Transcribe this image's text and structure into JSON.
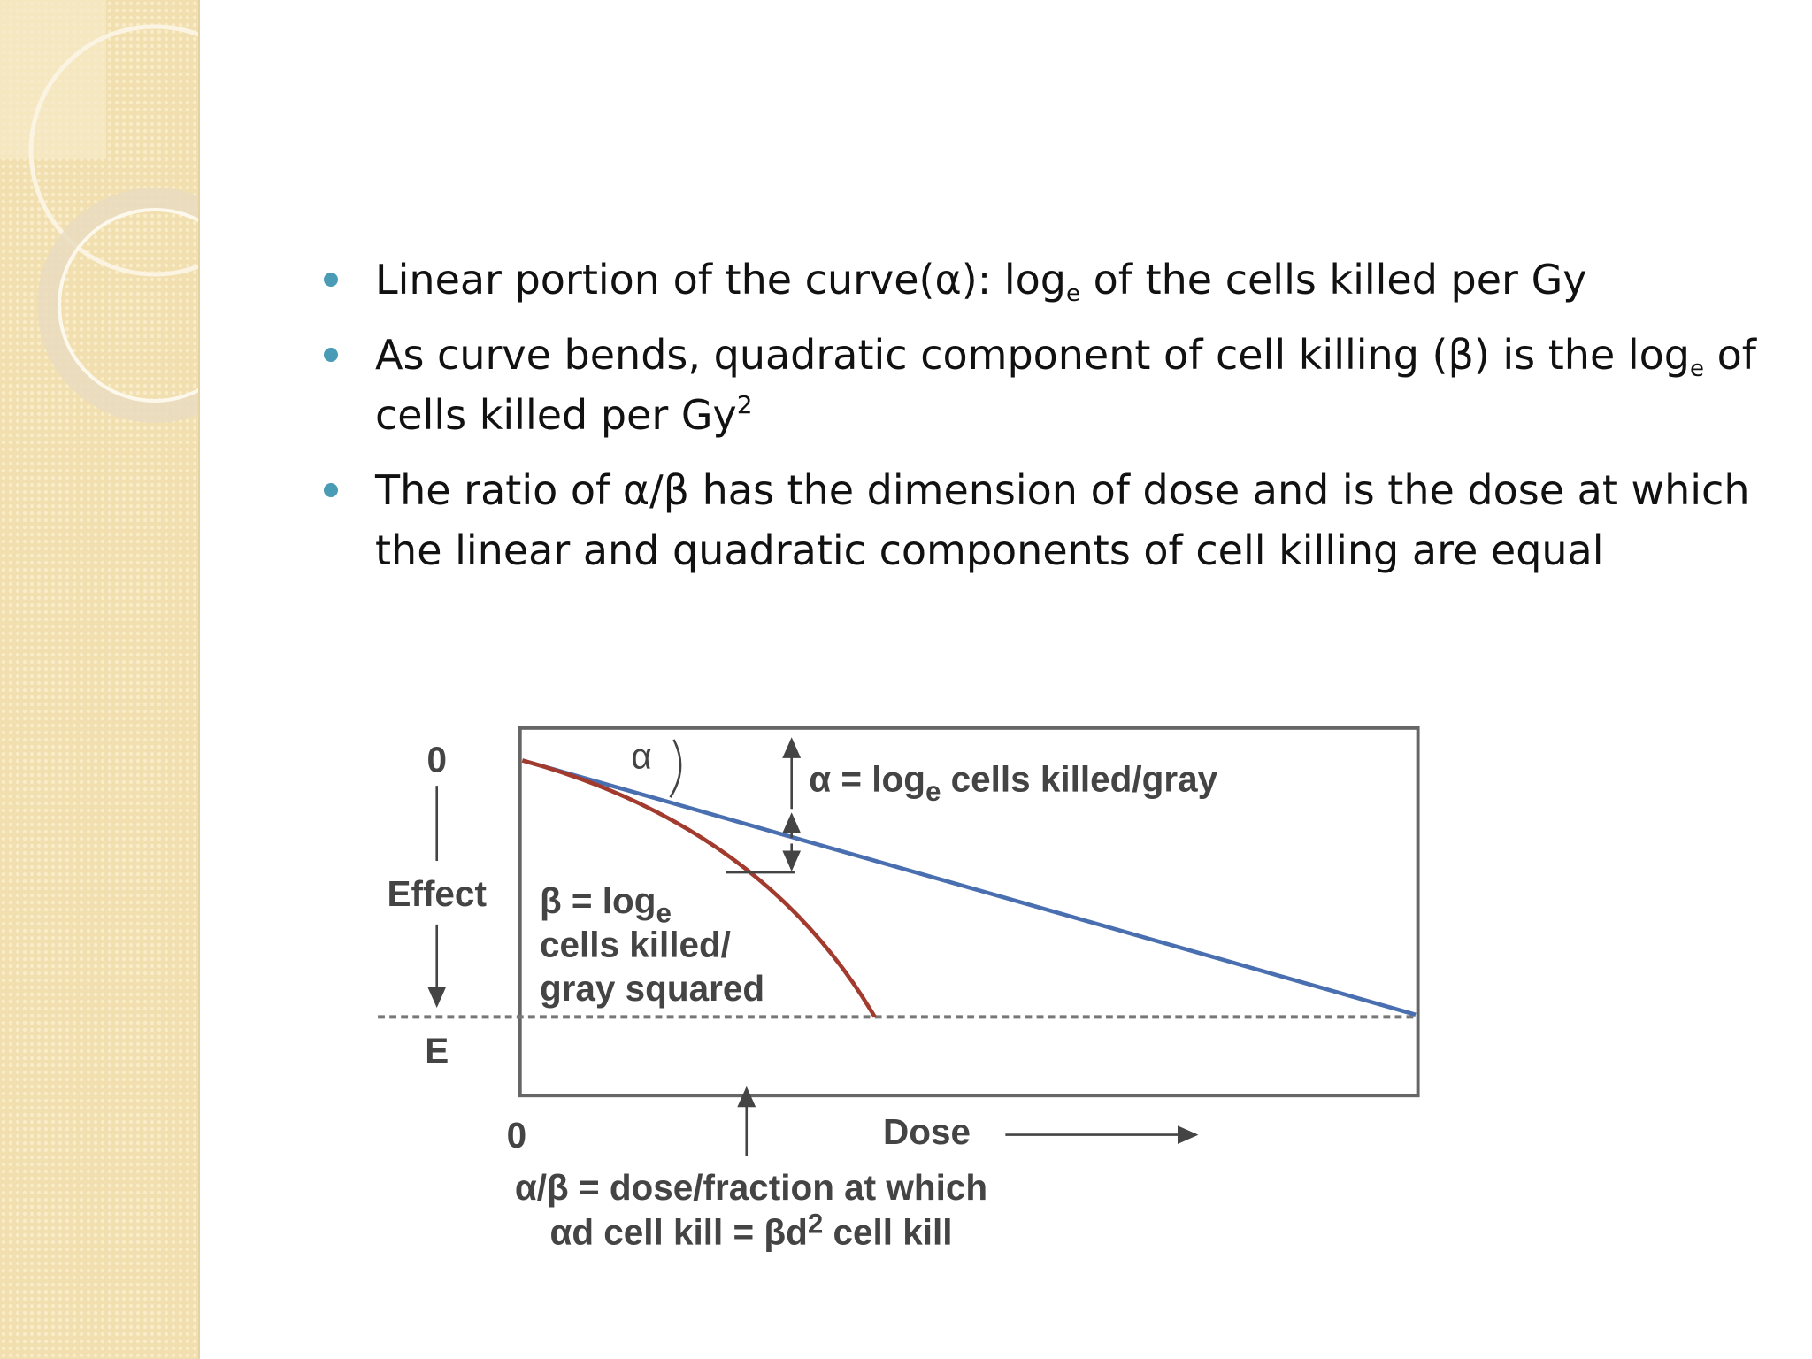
{
  "bullets": [
    {
      "parts": [
        "Linear portion of the curve(α): log",
        "e",
        " of the cells killed per Gy"
      ]
    },
    {
      "parts": [
        "As curve bends, quadratic component of cell killing (β) is the log",
        "e",
        " of cells killed per Gy",
        "2"
      ]
    },
    {
      "parts": [
        "The ratio of α/β has the dimension of dose and is the dose at which the linear and quadratic components of cell killing are equal"
      ]
    }
  ],
  "diagram": {
    "y_origin": "0",
    "y_label": "Effect",
    "y_end": "E",
    "x_origin": "0",
    "x_label": "Dose",
    "alpha_symbol": "α",
    "alpha_def": [
      "α = log",
      "e",
      " cells killed/gray"
    ],
    "beta_def": [
      "β = log",
      "e",
      "cells killed/",
      "gray squared"
    ],
    "caption": [
      "α/β = dose/fraction at which",
      "αd cell kill = βd",
      "2",
      " cell kill"
    ]
  }
}
